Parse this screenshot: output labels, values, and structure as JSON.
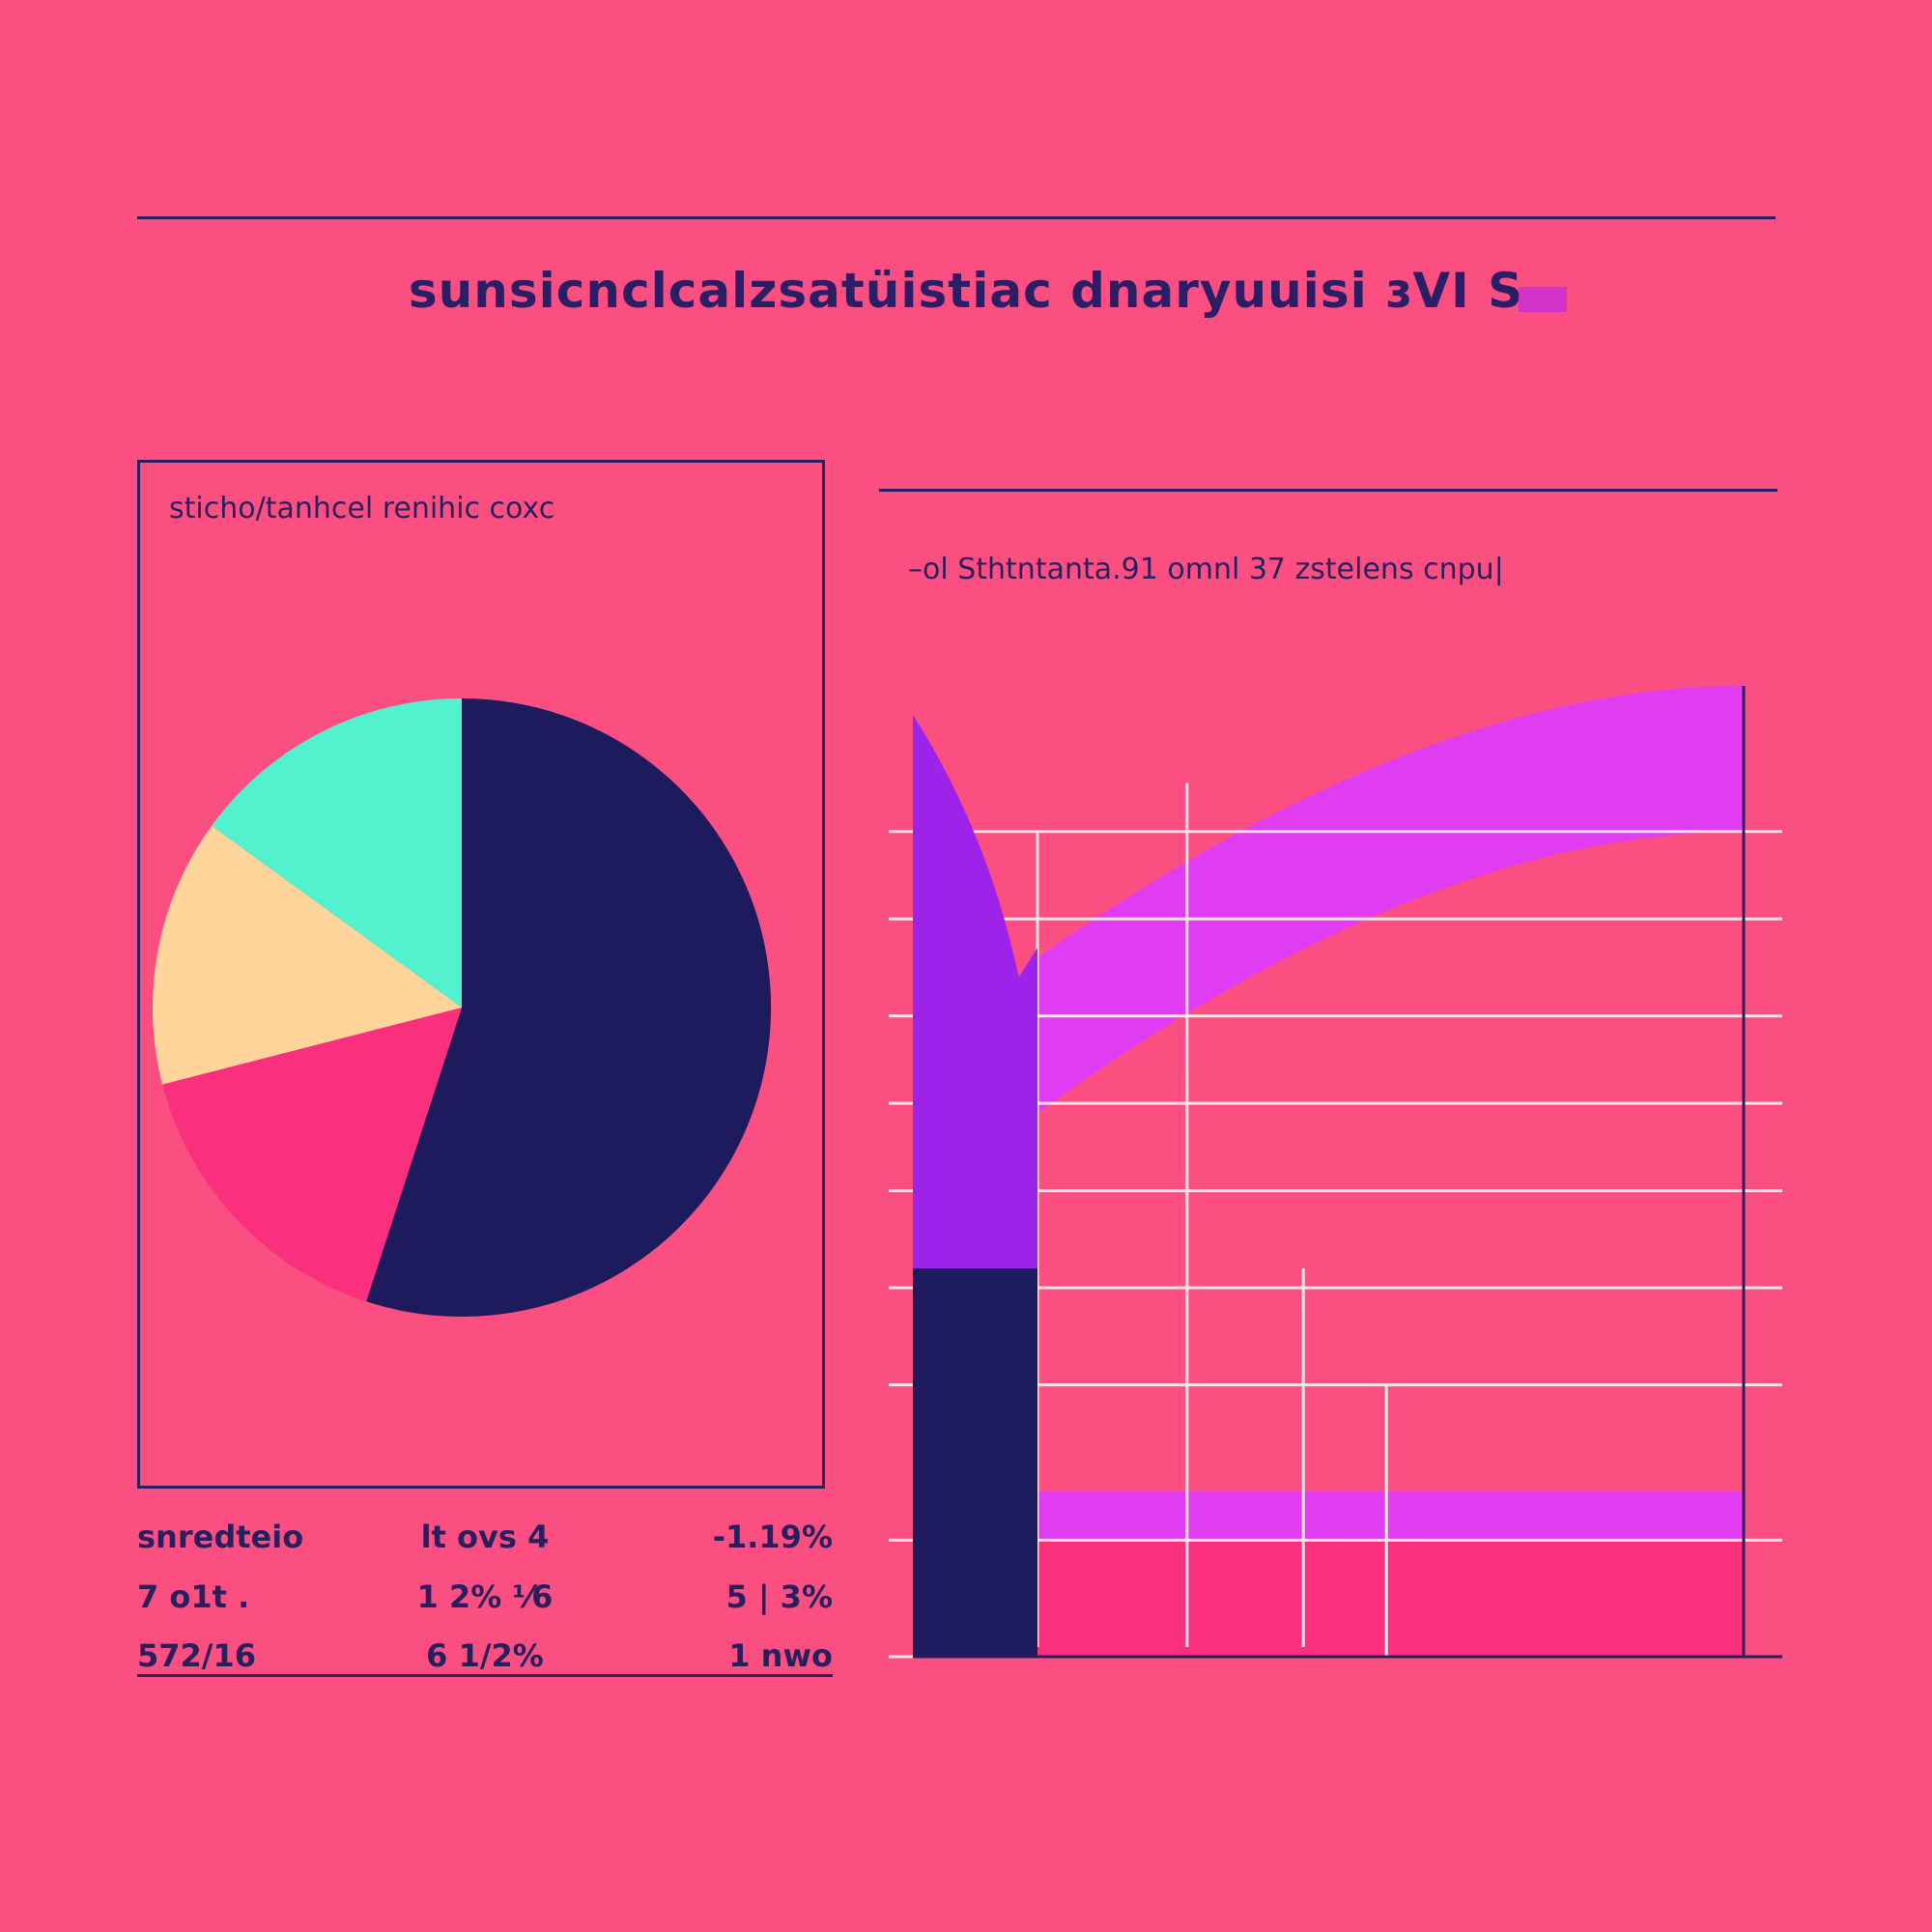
{
  "title": "sunsicnclcalzsatüistiac dnaryuuisi ɜVI S",
  "colors": {
    "background": "#fb4f82",
    "navy": "#1e1a5e",
    "pink": "#fa2f7d",
    "peach": "#ffd59b",
    "mint": "#52f2cf",
    "magenta": "#e03df2",
    "purple": "#9d23ea",
    "gridline": "#fde3ea"
  },
  "left_panel": {
    "caption": "sticho/tanhcel renihic coxc"
  },
  "right_panel": {
    "caption": "–ol Sthtntanta.91 omnl 37 zstelens cnpu|"
  },
  "stats_table": {
    "rows": [
      [
        "snredteio",
        "lt ovs 4",
        "-1.19%"
      ],
      [
        "7 o1t .",
        "1 2% ⅟6",
        "5 | 3%"
      ],
      [
        "572/16",
        "6 1/2%",
        "1 nwo"
      ]
    ]
  },
  "chart_data": [
    {
      "type": "pie",
      "title": "",
      "slices": [
        {
          "value": 55,
          "color": "#1e1a5e"
        },
        {
          "value": 16,
          "color": "#fa2f7d"
        },
        {
          "value": 14,
          "color": "#ffd59b"
        },
        {
          "value": 15,
          "color": "#52f2cf"
        }
      ]
    },
    {
      "type": "area",
      "title": "",
      "xlabel": "",
      "ylabel": "",
      "xlim": [
        0,
        100
      ],
      "ylim": [
        0,
        100
      ],
      "grid": true,
      "series": [
        {
          "type": "bar",
          "x": [
            0,
            15
          ],
          "value": 100,
          "color": "#1e1a5e"
        },
        {
          "type": "area",
          "x": [
            0,
            15
          ],
          "peak": 97,
          "dip": 70,
          "base": 46,
          "color": "#9d23ea"
        },
        {
          "type": "band",
          "x": [
            15,
            100
          ],
          "lower_start": 56,
          "lower_end": 85,
          "upper_start": 72,
          "upper_end": 100,
          "color": "#e03df2"
        },
        {
          "type": "band",
          "x": [
            15,
            100
          ],
          "lower_start": 12,
          "lower_end": 12,
          "upper_start": 17,
          "upper_end": 17,
          "color": "#e03df2"
        },
        {
          "type": "bar",
          "x": [
            15,
            100
          ],
          "value": 12,
          "color": "#fa2f7d"
        }
      ]
    }
  ]
}
